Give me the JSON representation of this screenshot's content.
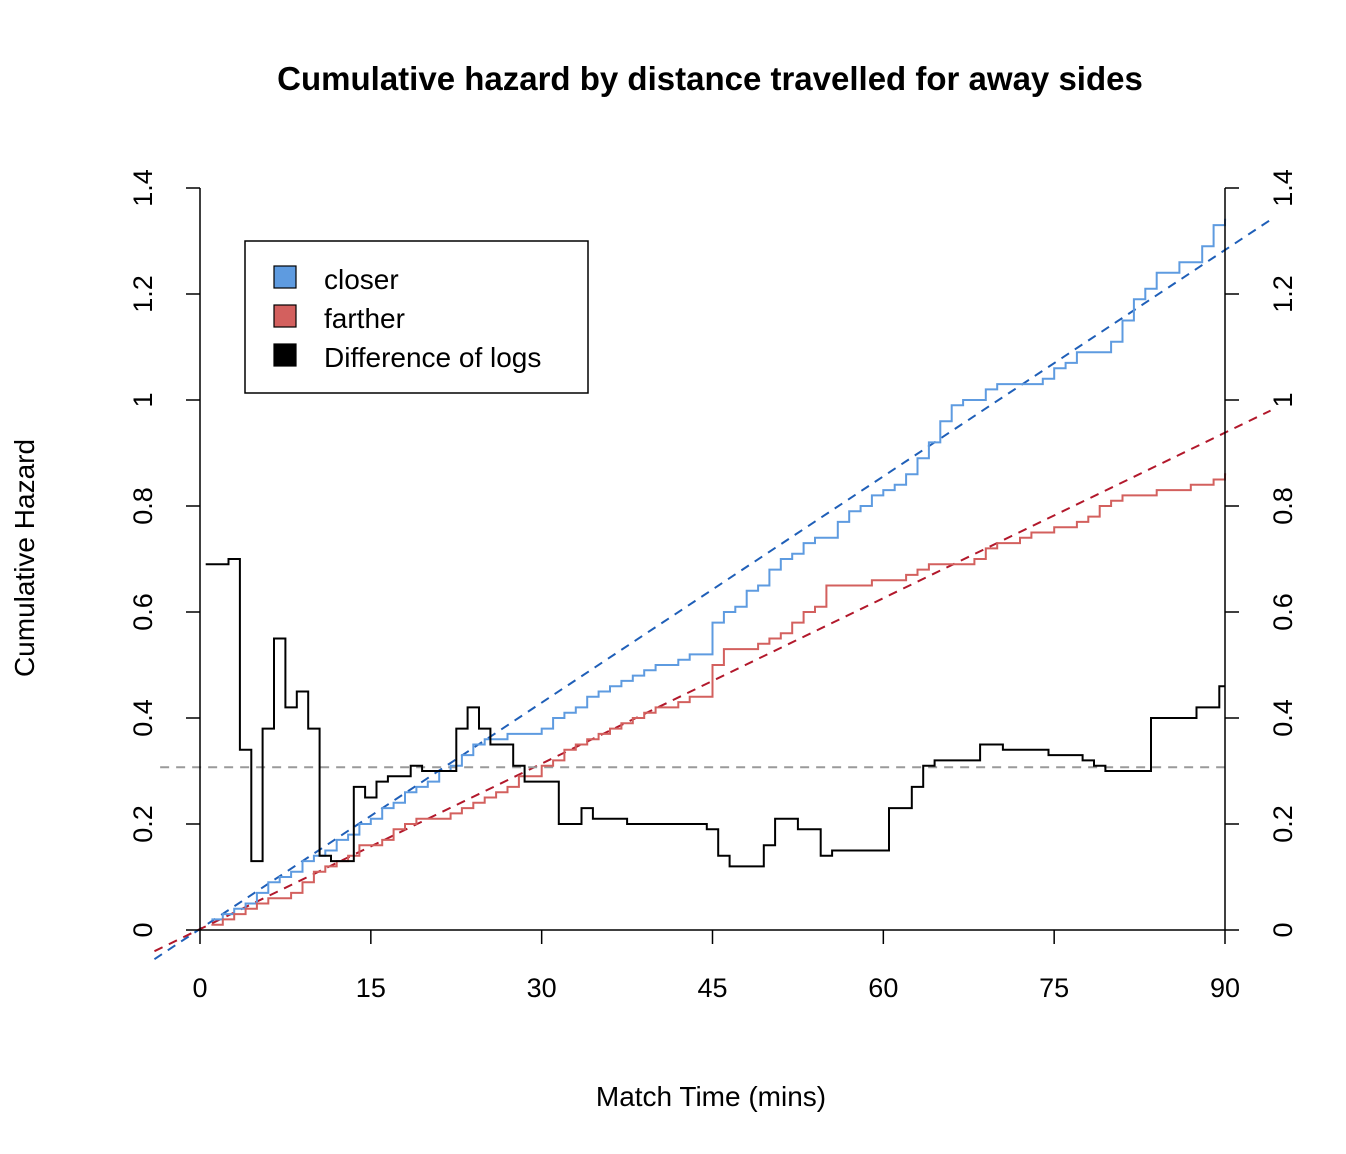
{
  "chart_data": {
    "type": "line",
    "title": "Cumulative hazard by distance travelled for away sides",
    "xlabel": "Match Time (mins)",
    "ylabel": "Cumulative Hazard",
    "xlim": [
      0,
      90
    ],
    "ylim": [
      0,
      1.4
    ],
    "x_ticks": [
      0,
      15,
      30,
      45,
      60,
      75,
      90
    ],
    "x_tick_labels": [
      "0",
      "15",
      "30",
      "45",
      "60",
      "75",
      "90"
    ],
    "y_ticks": [
      0,
      0.2,
      0.4,
      0.6,
      0.8,
      1,
      1.2,
      1.4
    ],
    "y_tick_labels": [
      "0",
      "0.2",
      "0.4",
      "0.6",
      "0.8",
      "1",
      "1.2",
      "1.4"
    ],
    "right_axis": true,
    "legend": {
      "position": "top-left",
      "entries": [
        {
          "label": "closer",
          "color": "#5e9be0"
        },
        {
          "label": "farther",
          "color": "#d3605e"
        },
        {
          "label": "Difference of logs",
          "color": "#000000"
        }
      ]
    },
    "series": [
      {
        "name": "closer",
        "style": "step",
        "color": "#5e9be0",
        "x": [
          1,
          2,
          3,
          4,
          5,
          6,
          7,
          8,
          9,
          10,
          11,
          12,
          13,
          14,
          15,
          16,
          17,
          18,
          19,
          20,
          21,
          22,
          23,
          24,
          25,
          26,
          27,
          28,
          29,
          30,
          31,
          32,
          33,
          34,
          35,
          36,
          37,
          38,
          39,
          40,
          41,
          42,
          43,
          44,
          45,
          46,
          47,
          48,
          49,
          50,
          51,
          52,
          53,
          54,
          55,
          56,
          57,
          58,
          59,
          60,
          61,
          62,
          63,
          64,
          65,
          66,
          67,
          68,
          69,
          70,
          71,
          72,
          73,
          74,
          75,
          76,
          77,
          78,
          79,
          80,
          81,
          82,
          83,
          84,
          85,
          86,
          87,
          88,
          89,
          90
        ],
        "values": [
          0.02,
          0.03,
          0.04,
          0.05,
          0.07,
          0.09,
          0.1,
          0.11,
          0.13,
          0.14,
          0.15,
          0.17,
          0.18,
          0.2,
          0.21,
          0.23,
          0.24,
          0.26,
          0.27,
          0.28,
          0.3,
          0.31,
          0.33,
          0.35,
          0.36,
          0.36,
          0.37,
          0.37,
          0.37,
          0.38,
          0.4,
          0.41,
          0.42,
          0.44,
          0.45,
          0.46,
          0.47,
          0.48,
          0.49,
          0.5,
          0.5,
          0.51,
          0.52,
          0.52,
          0.58,
          0.6,
          0.61,
          0.64,
          0.65,
          0.68,
          0.7,
          0.71,
          0.73,
          0.74,
          0.74,
          0.77,
          0.79,
          0.8,
          0.82,
          0.83,
          0.84,
          0.86,
          0.89,
          0.92,
          0.96,
          0.99,
          1.0,
          1.0,
          1.02,
          1.03,
          1.03,
          1.03,
          1.03,
          1.04,
          1.06,
          1.07,
          1.09,
          1.09,
          1.09,
          1.11,
          1.15,
          1.19,
          1.21,
          1.24,
          1.24,
          1.26,
          1.26,
          1.29,
          1.33,
          1.34
        ]
      },
      {
        "name": "farther",
        "style": "step",
        "color": "#d3605e",
        "x": [
          1,
          2,
          3,
          4,
          5,
          6,
          7,
          8,
          9,
          10,
          11,
          12,
          13,
          14,
          15,
          16,
          17,
          18,
          19,
          20,
          21,
          22,
          23,
          24,
          25,
          26,
          27,
          28,
          29,
          30,
          31,
          32,
          33,
          34,
          35,
          36,
          37,
          38,
          39,
          40,
          41,
          42,
          43,
          44,
          45,
          46,
          47,
          48,
          49,
          50,
          51,
          52,
          53,
          54,
          55,
          56,
          57,
          58,
          59,
          60,
          61,
          62,
          63,
          64,
          65,
          66,
          67,
          68,
          69,
          70,
          71,
          72,
          73,
          74,
          75,
          76,
          77,
          78,
          79,
          80,
          81,
          82,
          83,
          84,
          85,
          86,
          87,
          88,
          89,
          90
        ],
        "values": [
          0.01,
          0.02,
          0.03,
          0.04,
          0.05,
          0.06,
          0.06,
          0.07,
          0.09,
          0.11,
          0.12,
          0.13,
          0.14,
          0.16,
          0.16,
          0.17,
          0.19,
          0.2,
          0.21,
          0.21,
          0.21,
          0.22,
          0.23,
          0.24,
          0.25,
          0.26,
          0.27,
          0.29,
          0.29,
          0.31,
          0.32,
          0.34,
          0.35,
          0.36,
          0.37,
          0.38,
          0.39,
          0.4,
          0.41,
          0.42,
          0.42,
          0.43,
          0.44,
          0.44,
          0.5,
          0.53,
          0.53,
          0.53,
          0.54,
          0.55,
          0.56,
          0.58,
          0.6,
          0.61,
          0.65,
          0.65,
          0.65,
          0.65,
          0.66,
          0.66,
          0.66,
          0.67,
          0.68,
          0.69,
          0.69,
          0.69,
          0.69,
          0.7,
          0.72,
          0.73,
          0.73,
          0.74,
          0.75,
          0.75,
          0.76,
          0.76,
          0.77,
          0.78,
          0.8,
          0.81,
          0.82,
          0.82,
          0.82,
          0.83,
          0.83,
          0.83,
          0.84,
          0.84,
          0.85,
          0.86
        ]
      },
      {
        "name": "Difference of logs",
        "style": "step",
        "color": "#000000",
        "x": [
          0.5,
          2.5,
          3.5,
          4.5,
          5.5,
          6.5,
          7.5,
          8.5,
          9.5,
          10.5,
          11.5,
          12.5,
          13.5,
          14.5,
          15.5,
          16.5,
          17.5,
          18.5,
          19.5,
          20.5,
          21.5,
          22.5,
          23.5,
          24.5,
          25.5,
          26.5,
          27.5,
          28.5,
          30.5,
          31.5,
          32.5,
          33.5,
          34.5,
          35.5,
          37.5,
          38.5,
          39.5,
          40.5,
          43.5,
          44.5,
          45.5,
          46.5,
          48.5,
          49.5,
          50.5,
          52.5,
          54.5,
          55.5,
          56.5,
          60.5,
          62.5,
          63.5,
          64.5,
          66.5,
          68.5,
          70.5,
          72.5,
          74.5,
          76.5,
          77.5,
          78.5,
          79.5,
          82.5,
          83.5,
          85.5,
          87.5,
          89.5,
          90
        ],
        "values": [
          0.69,
          0.7,
          0.34,
          0.13,
          0.38,
          0.55,
          0.42,
          0.45,
          0.38,
          0.14,
          0.13,
          0.13,
          0.27,
          0.25,
          0.28,
          0.29,
          0.29,
          0.31,
          0.3,
          0.3,
          0.3,
          0.38,
          0.42,
          0.38,
          0.35,
          0.35,
          0.31,
          0.28,
          0.28,
          0.2,
          0.2,
          0.23,
          0.21,
          0.21,
          0.2,
          0.2,
          0.2,
          0.2,
          0.2,
          0.19,
          0.14,
          0.12,
          0.12,
          0.16,
          0.21,
          0.19,
          0.14,
          0.15,
          0.15,
          0.23,
          0.27,
          0.31,
          0.32,
          0.32,
          0.35,
          0.34,
          0.34,
          0.33,
          0.33,
          0.32,
          0.31,
          0.3,
          0.3,
          0.4,
          0.4,
          0.42,
          0.46,
          0.46
        ]
      }
    ],
    "reference_lines": [
      {
        "name": "closer trend",
        "style": "dashed",
        "color": "#1f5fb8",
        "x": [
          -4,
          94
        ],
        "y": [
          -0.055,
          1.34
        ]
      },
      {
        "name": "farther trend",
        "style": "dashed",
        "color": "#b2182b",
        "x": [
          -4,
          94
        ],
        "y": [
          -0.04,
          0.98
        ]
      },
      {
        "name": "difference mean",
        "style": "dashed",
        "color": "#9a9a9a",
        "x": [
          -3.5,
          90
        ],
        "y": [
          0.307,
          0.307
        ]
      }
    ]
  }
}
